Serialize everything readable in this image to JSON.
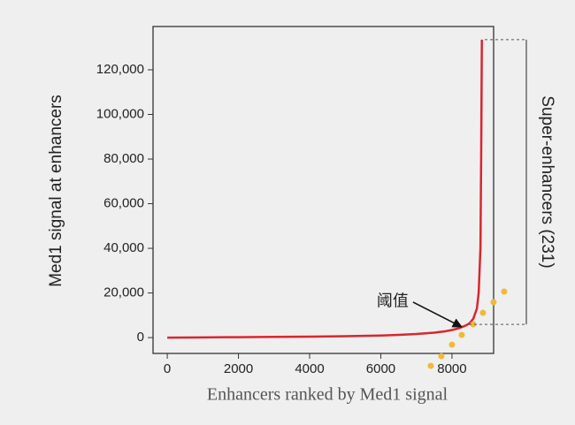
{
  "chart_data": {
    "type": "line",
    "x_label": "Enhancers ranked by Med1 signal",
    "y_label": "Med1 signal at enhancers",
    "xlim": [
      -400,
      9170
    ],
    "ylim": [
      -7100,
      139400
    ],
    "xticks": [
      0,
      2000,
      4000,
      6000,
      8000
    ],
    "yticks": [
      0,
      {
        "value": 20000,
        "label": "20,000"
      },
      {
        "value": 40000,
        "label": "40,000"
      },
      {
        "value": 60000,
        "label": "60,000"
      },
      {
        "value": 80000,
        "label": "80,000"
      },
      {
        "value": 100000,
        "label": "100,000"
      },
      {
        "value": 120000,
        "label": "120,000"
      }
    ],
    "series": [
      {
        "color": "#d8262f",
        "x": [
          0,
          1000,
          2000,
          3000,
          4000,
          5000,
          6000,
          6500,
          7000,
          7500,
          7800,
          8000,
          8200,
          8400,
          8500,
          8600,
          8700,
          8750,
          8800,
          8820,
          8840
        ],
        "values": [
          0,
          100,
          200,
          300,
          400,
          600,
          900,
          1200,
          1600,
          2200,
          2800,
          3400,
          4200,
          5500,
          6500,
          8500,
          13000,
          20000,
          40000,
          80000,
          133500
        ]
      },
      {
        "type": "scatter",
        "color": "#f0b93a",
        "x": [
          7404,
          7702,
          8000,
          8273,
          8596,
          8870,
          9168,
          9466
        ],
        "values": [
          -12673,
          -8317,
          -3168,
          1188,
          5941,
          11089,
          15842,
          20594
        ]
      }
    ],
    "annotation": {
      "text": "阈值",
      "x": 8273,
      "y": 4800
    },
    "bracket": {
      "label": "Super-enhancers (231)",
      "range": [
        5941,
        133500
      ]
    }
  }
}
